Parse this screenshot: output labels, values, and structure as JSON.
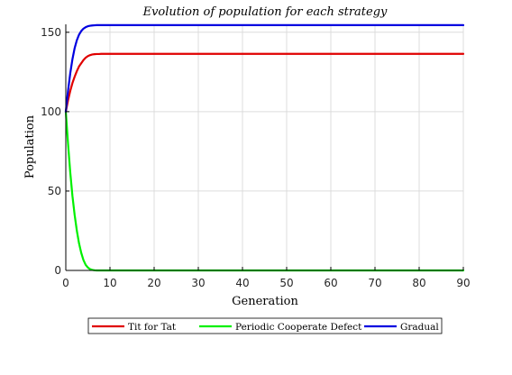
{
  "chart_data": {
    "type": "line",
    "title": "Evolution of population for each strategy",
    "xlabel": "Generation",
    "ylabel": "Population",
    "xlim": [
      0,
      90
    ],
    "ylim": [
      0,
      155
    ],
    "xticks": [
      0,
      10,
      20,
      30,
      40,
      50,
      60,
      70,
      80,
      90
    ],
    "yticks": [
      0,
      50,
      100,
      150
    ],
    "grid": true,
    "legend": "bottom-outside",
    "x": [
      0,
      0.5,
      1,
      1.5,
      2,
      2.5,
      3,
      3.5,
      4,
      4.5,
      5,
      5.5,
      6,
      6.5,
      7,
      7.5,
      8,
      9,
      10,
      12,
      15,
      20,
      30,
      40,
      50,
      60,
      70,
      80,
      90
    ],
    "series": [
      {
        "name": "Tit for Tat",
        "color": "#e00000",
        "values": [
          100,
          107,
          113,
          118,
          122,
          125.5,
          128.5,
          130.5,
          132.5,
          134,
          135,
          135.6,
          136,
          136.2,
          136.3,
          136.3,
          136.4,
          136.4,
          136.4,
          136.4,
          136.4,
          136.4,
          136.4,
          136.4,
          136.4,
          136.4,
          136.4,
          136.4,
          136.4
        ]
      },
      {
        "name": "Periodic Cooperate Defect",
        "color": "#00f000",
        "values": [
          100,
          80,
          62,
          47,
          35,
          25,
          17,
          11,
          6.5,
          3.5,
          1.8,
          0.8,
          0.3,
          0.1,
          0,
          0,
          0,
          0,
          0,
          0,
          0,
          0,
          0,
          0,
          0,
          0,
          0,
          0,
          0
        ]
      },
      {
        "name": "Gradual",
        "color": "#0000e0",
        "values": [
          100,
          113,
          124,
          133,
          140,
          145,
          148.5,
          150.8,
          152.3,
          153.2,
          153.8,
          154.1,
          154.3,
          154.4,
          154.5,
          154.5,
          154.5,
          154.5,
          154.5,
          154.5,
          154.5,
          154.5,
          154.5,
          154.5,
          154.5,
          154.5,
          154.5,
          154.5,
          154.5
        ]
      }
    ]
  }
}
